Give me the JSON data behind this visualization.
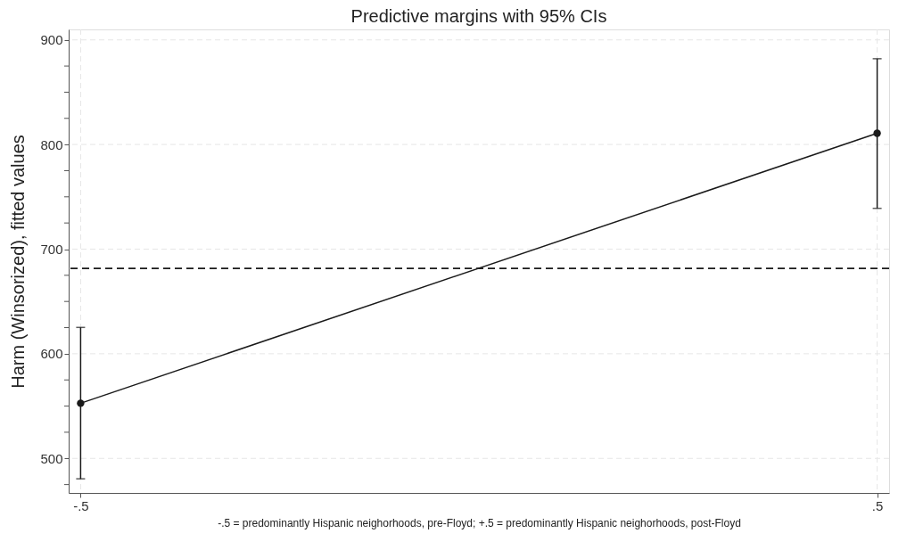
{
  "chart_data": {
    "type": "line",
    "title": "Predictive margins with 95% CIs",
    "xlabel": "-.5 = predominantly Hispanic neighorhoods, pre-Floyd; +.5 = predominantly Hispanic neighorhoods, post-Floyd",
    "ylabel": "Harm (Winsorized), fitted values",
    "x": [
      -0.5,
      0.5
    ],
    "series": [
      {
        "color": "#1a1a1a",
        "values": [
          552.7,
          810.8
        ],
        "errors": [
          [
            480.5,
            625.2
          ],
          [
            739,
            882
          ]
        ]
      }
    ],
    "xlim": [
      -0.515,
      0.515
    ],
    "xticks": [
      {
        "value": -0.5,
        "label": "-.5"
      },
      {
        "value": 0.5,
        "label": ".5"
      }
    ],
    "ylim": [
      467,
      910
    ],
    "yticks": [
      {
        "value": 475,
        "label": null
      },
      500,
      {
        "value": 525,
        "label": null
      },
      {
        "value": 550,
        "label": null
      },
      {
        "value": 575,
        "label": null
      },
      600,
      {
        "value": 625,
        "label": null
      },
      {
        "value": 650,
        "label": null
      },
      {
        "value": 675,
        "label": null
      },
      700,
      {
        "value": 725,
        "label": null
      },
      {
        "value": 750,
        "label": null
      },
      {
        "value": 775,
        "label": null
      },
      800,
      {
        "value": 825,
        "label": null
      },
      {
        "value": 850,
        "label": null
      },
      {
        "value": 875,
        "label": null
      },
      900
    ],
    "ref_lines": [
      {
        "axis": "y",
        "value": 681.6,
        "color": "#1a1a1a",
        "line_style": "dashed"
      }
    ],
    "grid": true,
    "marker": "circle",
    "line_style": "solid"
  }
}
